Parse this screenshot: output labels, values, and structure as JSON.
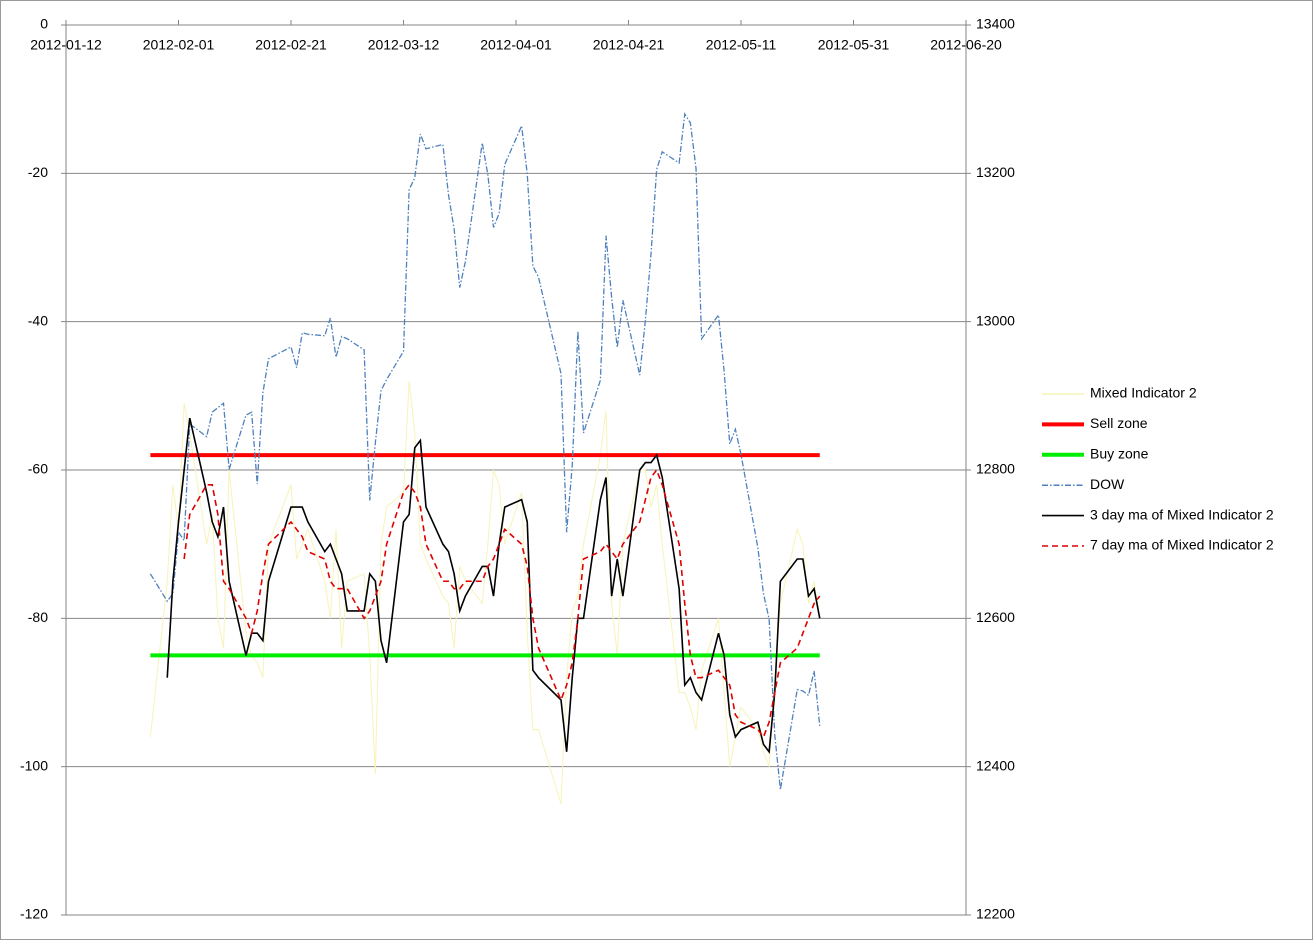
{
  "chart_data": {
    "type": "line",
    "x": [
      "2012-01-27",
      "2012-01-30",
      "2012-01-31",
      "2012-02-01",
      "2012-02-02",
      "2012-02-03",
      "2012-02-06",
      "2012-02-07",
      "2012-02-08",
      "2012-02-09",
      "2012-02-10",
      "2012-02-13",
      "2012-02-14",
      "2012-02-15",
      "2012-02-16",
      "2012-02-17",
      "2012-02-21",
      "2012-02-22",
      "2012-02-23",
      "2012-02-24",
      "2012-02-27",
      "2012-02-28",
      "2012-02-29",
      "2012-03-01",
      "2012-03-02",
      "2012-03-05",
      "2012-03-06",
      "2012-03-07",
      "2012-03-08",
      "2012-03-09",
      "2012-03-12",
      "2012-03-13",
      "2012-03-14",
      "2012-03-15",
      "2012-03-16",
      "2012-03-19",
      "2012-03-20",
      "2012-03-21",
      "2012-03-22",
      "2012-03-23",
      "2012-03-26",
      "2012-03-27",
      "2012-03-28",
      "2012-03-29",
      "2012-03-30",
      "2012-04-02",
      "2012-04-03",
      "2012-04-04",
      "2012-04-05",
      "2012-04-09",
      "2012-04-10",
      "2012-04-11",
      "2012-04-12",
      "2012-04-13",
      "2012-04-16",
      "2012-04-17",
      "2012-04-18",
      "2012-04-19",
      "2012-04-20",
      "2012-04-23",
      "2012-04-24",
      "2012-04-25",
      "2012-04-26",
      "2012-04-27",
      "2012-04-30",
      "2012-05-01",
      "2012-05-02",
      "2012-05-03",
      "2012-05-04",
      "2012-05-07",
      "2012-05-08",
      "2012-05-09",
      "2012-05-10",
      "2012-05-11",
      "2012-05-14",
      "2012-05-15",
      "2012-05-16",
      "2012-05-17",
      "2012-05-18",
      "2012-05-21",
      "2012-05-22",
      "2012-05-23",
      "2012-05-24",
      "2012-05-25"
    ],
    "xlim": [
      "2012-01-12",
      "2012-06-20"
    ],
    "xticks": [
      "2012-01-12",
      "2012-02-01",
      "2012-02-21",
      "2012-03-12",
      "2012-04-01",
      "2012-04-21",
      "2012-05-11",
      "2012-05-31",
      "2012-06-20"
    ],
    "ylim": [
      -120,
      0
    ],
    "yticks": [
      -120,
      -100,
      -80,
      -60,
      -40,
      -20,
      0
    ],
    "y2lim": [
      12200,
      13400
    ],
    "y2ticks": [
      12200,
      12400,
      12600,
      12800,
      13000,
      13200,
      13400
    ],
    "grid": true,
    "legend": "right",
    "series": [
      {
        "name": "Mixed Indicator 2",
        "color": "#f7f3b8",
        "width": 1,
        "dash": "solid",
        "values": [
          -96,
          -75,
          -62,
          -68,
          -51,
          -55,
          -70,
          -66,
          -80,
          -84,
          -60,
          -82,
          -85,
          -86,
          -88,
          -70,
          -62,
          -72,
          -70,
          -68,
          -75,
          -80,
          -68,
          -84,
          -75,
          -74,
          -85,
          -101,
          -70,
          -65,
          -63,
          -48,
          -55,
          -70,
          -72,
          -77,
          -78,
          -84,
          -73,
          -75,
          -78,
          -70,
          -60,
          -62,
          -70,
          -63,
          -82,
          -95,
          -95,
          -105,
          -88,
          -79,
          -77,
          -70,
          -58,
          -52,
          -78,
          -85,
          -70,
          -60,
          -60,
          -65,
          -62,
          -70,
          -90,
          -90,
          -92,
          -95,
          -87,
          -80,
          -90,
          -100,
          -96,
          -92,
          -95,
          -98,
          -100,
          -88,
          -78,
          -68,
          -70,
          -78,
          -75,
          -80
        ]
      },
      {
        "name": "Sell zone",
        "color": "#ff0000",
        "width": 4,
        "dash": "solid",
        "x": [
          "2012-01-27",
          "2012-05-25"
        ],
        "values": [
          -58,
          -58
        ]
      },
      {
        "name": "Buy zone",
        "color": "#00ee00",
        "width": 4,
        "dash": "solid",
        "x": [
          "2012-01-27",
          "2012-05-25"
        ],
        "values": [
          -85,
          -85
        ]
      },
      {
        "name": "DOW",
        "color": "#4f81bd",
        "width": 1.3,
        "dash": "dash-dot",
        "axis": "y2",
        "values": [
          12660,
          12623,
          12633,
          12716,
          12705,
          12862,
          12845,
          12878,
          12884,
          12890,
          12801,
          12874,
          12878,
          12781,
          12904,
          12950,
          12966,
          12938,
          12985,
          12983,
          12981,
          13005,
          12952,
          12980,
          12977,
          12962,
          12759,
          12837,
          12907,
          12922,
          12960,
          13178,
          13194,
          13253,
          13233,
          13239,
          13171,
          13125,
          13046,
          13081,
          13241,
          13198,
          13127,
          13146,
          13212,
          13264,
          13199,
          13075,
          13060,
          12930,
          12716,
          12806,
          12987,
          12850,
          12921,
          13116,
          13033,
          12965,
          13029,
          12928,
          13002,
          13091,
          13205,
          13229,
          13214,
          13280,
          13268,
          13207,
          12977,
          13009,
          12933,
          12835,
          12855,
          12821,
          12695,
          12633,
          12599,
          12443,
          12369,
          12504,
          12502,
          12496,
          12529,
          12455
        ]
      },
      {
        "name": "3 day ma of Mixed Indicator 2",
        "color": "#000000",
        "width": 1.6,
        "dash": "solid",
        "values": [
          null,
          -88,
          -75,
          -67,
          -60,
          -53,
          -63,
          -67,
          -69,
          -65,
          -75,
          -85,
          -82,
          -82,
          -83,
          -75,
          -65,
          -65,
          -65,
          -67,
          -71,
          -70,
          -72,
          -74,
          -79,
          -79,
          -74,
          -75,
          -83,
          -86,
          -67,
          -66,
          -57,
          -56,
          -65,
          -70,
          -71,
          -74,
          -79,
          -77,
          -73,
          -73,
          -77,
          -70,
          -65,
          -64,
          -67,
          -87,
          -88,
          -91,
          -98,
          -88,
          -80,
          -80,
          -64,
          -61,
          -77,
          -72,
          -77,
          -60,
          -59,
          -59,
          -58,
          -61,
          -76,
          -89,
          -88,
          -90,
          -91,
          -82,
          -85,
          -93,
          -96,
          -95,
          -94,
          -97,
          -98,
          -90,
          -75,
          -72,
          -72,
          -77,
          -76,
          -80
        ]
      },
      {
        "name": "7 day ma of Mixed Indicator 2",
        "color": "#e00000",
        "width": 1.6,
        "dash": "dashed",
        "values": [
          null,
          null,
          null,
          null,
          -72,
          -66,
          -62,
          -62,
          -66,
          -75,
          -76,
          -80,
          -82,
          -79,
          -74,
          -70,
          -67,
          -68,
          -69,
          -71,
          -72,
          -75,
          -76,
          -76,
          -76,
          -80,
          -79,
          -77,
          -75,
          -70,
          -63,
          -62,
          -63,
          -65,
          -70,
          -75,
          -75,
          -76,
          -76,
          -75,
          -75,
          -73,
          -72,
          -70,
          -68,
          -70,
          -73,
          -80,
          -84,
          -91,
          -89,
          -86,
          -80,
          -72,
          -71,
          -70,
          -71,
          -72,
          -70,
          -67,
          -64,
          -61,
          -60,
          -62,
          -70,
          -78,
          -85,
          -88,
          -88,
          -87,
          -88,
          -89,
          -93,
          -94,
          -95,
          -96,
          -94,
          -90,
          -86,
          -84,
          -82,
          -80,
          -78,
          -77
        ]
      }
    ]
  }
}
